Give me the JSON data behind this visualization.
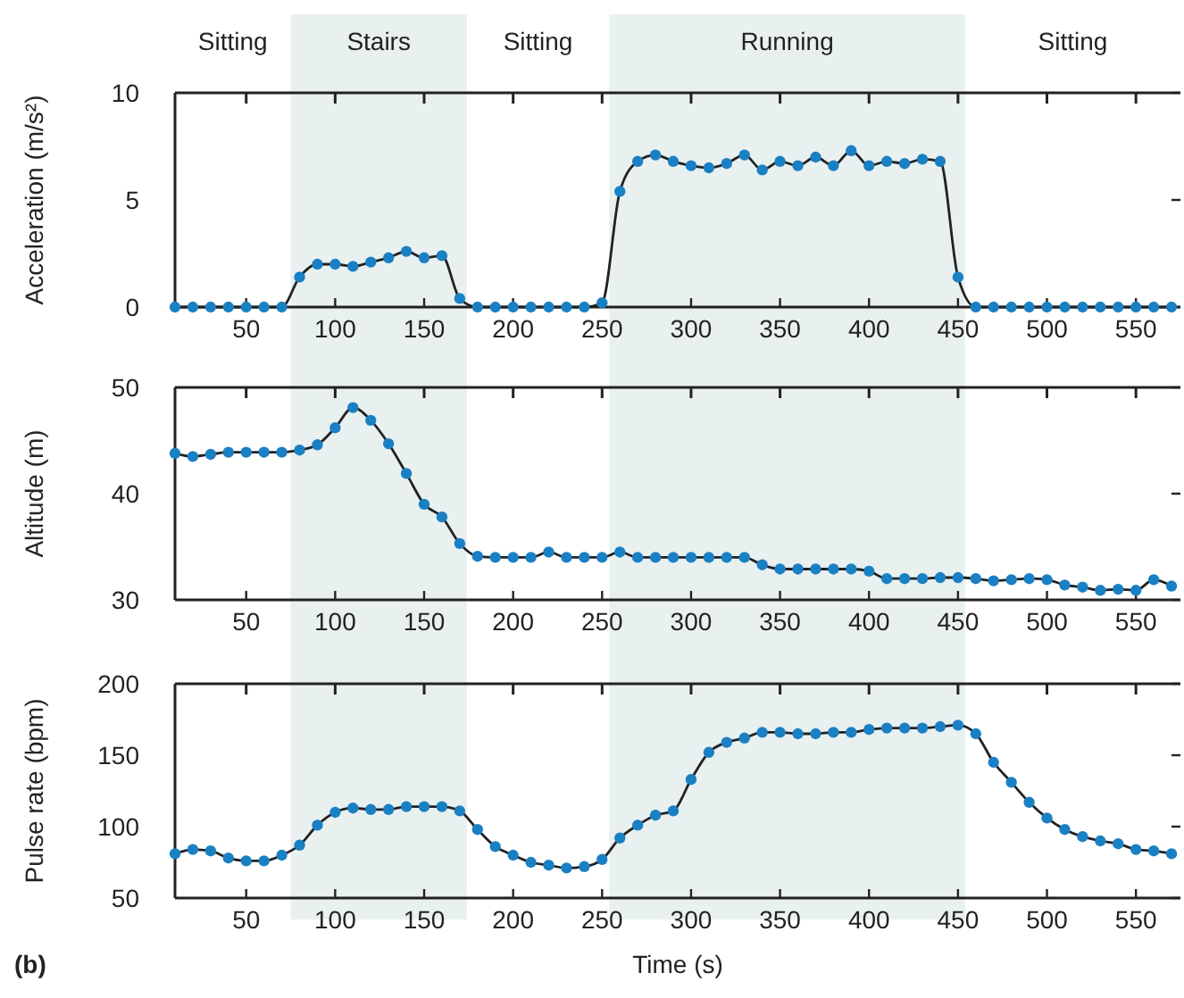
{
  "chart_data": [
    {
      "type": "line",
      "ylabel": "Acceleration (m/s²)",
      "xlim": [
        10,
        575
      ],
      "xticks": [
        50,
        100,
        150,
        200,
        250,
        300,
        350,
        400,
        450,
        500,
        550
      ],
      "ylim": [
        0,
        10
      ],
      "yticks": [
        0,
        5,
        10
      ],
      "marker": "circle",
      "x": [
        10,
        20,
        30,
        40,
        50,
        60,
        70,
        80,
        90,
        100,
        110,
        120,
        130,
        140,
        150,
        160,
        170,
        180,
        190,
        200,
        210,
        220,
        230,
        240,
        250,
        260,
        270,
        280,
        290,
        300,
        310,
        320,
        330,
        340,
        350,
        360,
        370,
        380,
        390,
        400,
        410,
        420,
        430,
        440,
        450,
        460,
        470,
        480,
        490,
        500,
        510,
        520,
        530,
        540,
        550,
        560,
        570
      ],
      "series": [
        {
          "color": "#1a80c4",
          "values": [
            0,
            0,
            0,
            0,
            0,
            0,
            0,
            1.4,
            2.0,
            2.0,
            1.9,
            2.1,
            2.3,
            2.6,
            2.3,
            2.4,
            0.4,
            0,
            0,
            0,
            0,
            0,
            0,
            0,
            0.2,
            5.4,
            6.8,
            7.1,
            6.8,
            6.6,
            6.5,
            6.7,
            7.1,
            6.4,
            6.8,
            6.6,
            7.0,
            6.6,
            7.3,
            6.6,
            6.8,
            6.7,
            6.9,
            6.8,
            1.4,
            0,
            0,
            0,
            0,
            0,
            0,
            0,
            0,
            0,
            0,
            0,
            0
          ]
        }
      ],
      "bands": [
        {
          "axis": "x",
          "from": 75,
          "to": 174,
          "label": "Stairs",
          "color": "#e9f0f0"
        },
        {
          "axis": "x",
          "from": 254,
          "to": 454,
          "label": "Running",
          "color": "#e9f0f0"
        }
      ],
      "annotations": [
        "Sitting",
        "Sitting",
        "Sitting"
      ]
    },
    {
      "type": "line",
      "ylabel": "Altitude (m)",
      "xlim": [
        10,
        575
      ],
      "xticks": [
        50,
        100,
        150,
        200,
        250,
        300,
        350,
        400,
        450,
        500,
        550
      ],
      "ylim": [
        30,
        50
      ],
      "yticks": [
        30,
        40,
        50
      ],
      "marker": "circle",
      "x": [
        10,
        20,
        30,
        40,
        50,
        60,
        70,
        80,
        90,
        100,
        110,
        120,
        130,
        140,
        150,
        160,
        170,
        180,
        190,
        200,
        210,
        220,
        230,
        240,
        250,
        260,
        270,
        280,
        290,
        300,
        310,
        320,
        330,
        340,
        350,
        360,
        370,
        380,
        390,
        400,
        410,
        420,
        430,
        440,
        450,
        460,
        470,
        480,
        490,
        500,
        510,
        520,
        530,
        540,
        550,
        560,
        570
      ],
      "series": [
        {
          "color": "#1a80c4",
          "values": [
            43.8,
            43.5,
            43.7,
            43.9,
            43.9,
            43.9,
            43.9,
            44.1,
            44.6,
            46.2,
            48.1,
            46.9,
            44.7,
            41.9,
            39.0,
            37.8,
            35.3,
            34.1,
            34.0,
            34.0,
            34.0,
            34.5,
            34.0,
            34.0,
            34.0,
            34.5,
            34.0,
            34.0,
            34.0,
            34.0,
            34.0,
            34.0,
            34.0,
            33.3,
            32.9,
            32.9,
            32.9,
            32.9,
            32.9,
            32.7,
            32.0,
            32.0,
            32.0,
            32.1,
            32.1,
            32.0,
            31.8,
            31.9,
            32.0,
            31.9,
            31.4,
            31.2,
            30.9,
            31.0,
            30.9,
            31.9,
            31.3
          ]
        }
      ],
      "bands": [
        {
          "axis": "x",
          "from": 75,
          "to": 174,
          "color": "#e9f0f0"
        },
        {
          "axis": "x",
          "from": 254,
          "to": 454,
          "color": "#e9f0f0"
        }
      ]
    },
    {
      "type": "line",
      "ylabel": "Pulse rate (bpm)",
      "xlabel": "Time (s)",
      "xlim": [
        10,
        575
      ],
      "xticks": [
        50,
        100,
        150,
        200,
        250,
        300,
        350,
        400,
        450,
        500,
        550
      ],
      "ylim": [
        50,
        200
      ],
      "yticks": [
        50,
        100,
        150,
        200
      ],
      "marker": "circle",
      "x": [
        10,
        20,
        30,
        40,
        50,
        60,
        70,
        80,
        90,
        100,
        110,
        120,
        130,
        140,
        150,
        160,
        170,
        180,
        190,
        200,
        210,
        220,
        230,
        240,
        250,
        260,
        270,
        280,
        290,
        300,
        310,
        320,
        330,
        340,
        350,
        360,
        370,
        380,
        390,
        400,
        410,
        420,
        430,
        440,
        450,
        460,
        470,
        480,
        490,
        500,
        510,
        520,
        530,
        540,
        550,
        560,
        570
      ],
      "series": [
        {
          "color": "#1a80c4",
          "values": [
            81,
            84,
            83,
            78,
            76,
            76,
            80,
            87,
            101,
            110,
            113,
            112,
            112,
            114,
            114,
            114,
            111,
            98,
            86,
            80,
            75,
            73,
            71,
            72,
            77,
            92,
            101,
            108,
            111,
            133,
            152,
            159,
            162,
            166,
            166,
            165,
            165,
            166,
            166,
            168,
            169,
            169,
            169,
            170,
            171,
            165,
            145,
            131,
            117,
            106,
            98,
            93,
            90,
            88,
            84,
            83,
            81
          ]
        }
      ],
      "bands": [
        {
          "axis": "x",
          "from": 75,
          "to": 174,
          "color": "#e9f0f0"
        },
        {
          "axis": "x",
          "from": 254,
          "to": 454,
          "color": "#e9f0f0"
        }
      ],
      "annotations": [
        "(b)"
      ]
    }
  ]
}
